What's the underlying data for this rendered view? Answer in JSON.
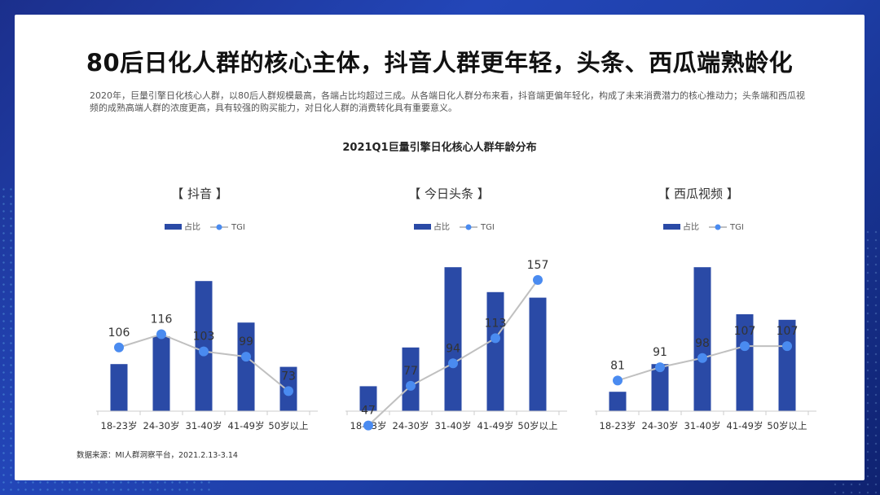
{
  "title": "80后日化人群的核心主体，抖音人群更年轻，头条、西瓜端熟龄化",
  "description": "2020年，巨量引擎日化核心人群，以80后人群规模最高，各端占比均超过三成。从各端日化人群分布来看，抖音端更偏年轻化，构成了未来消费潜力的核心推动力；头条端和西瓜视频的成熟高端人群的浓度更高，具有较强的购买能力，对日化人群的消费转化具有重要意义。",
  "chart_title": "2021Q1巨量引擎日化核心人群年龄分布",
  "source": "数据来源：MI人群洞察平台，2021.2.13-3.14",
  "colors": {
    "bar": "#2a4aa6",
    "line": "#c0c0c0",
    "point": "#4a8bf0",
    "axis": "#cccccc"
  },
  "chart_data": [
    {
      "type": "bar",
      "title": "【 抖音 】",
      "categories": [
        "18-23岁",
        "24-30岁",
        "31-40岁",
        "41-49岁",
        "50岁以上"
      ],
      "series": [
        {
          "name": "占比",
          "type": "bar",
          "values": [
            0.17,
            0.27,
            0.47,
            0.32,
            0.16
          ]
        },
        {
          "name": "TGI",
          "type": "line",
          "values": [
            106,
            116,
            103,
            99,
            73
          ]
        }
      ],
      "legend": "top-center",
      "grid": false
    },
    {
      "type": "bar",
      "title": "【 今日头条 】",
      "categories": [
        "18-23岁",
        "24-30岁",
        "31-40岁",
        "41-49岁",
        "50岁以上"
      ],
      "series": [
        {
          "name": "占比",
          "type": "bar",
          "values": [
            0.09,
            0.23,
            0.52,
            0.43,
            0.41
          ]
        },
        {
          "name": "TGI",
          "type": "line",
          "values": [
            47,
            77,
            94,
            113,
            157
          ]
        }
      ],
      "legend": "top-center",
      "grid": false
    },
    {
      "type": "bar",
      "title": "【 西瓜视频 】",
      "categories": [
        "18-23岁",
        "24-30岁",
        "31-40岁",
        "41-49岁",
        "50岁以上"
      ],
      "series": [
        {
          "name": "占比",
          "type": "bar",
          "values": [
            0.07,
            0.17,
            0.52,
            0.35,
            0.33
          ]
        },
        {
          "name": "TGI",
          "type": "line",
          "values": [
            81,
            91,
            98,
            107,
            107
          ]
        }
      ],
      "legend": "top-center",
      "grid": false
    }
  ]
}
